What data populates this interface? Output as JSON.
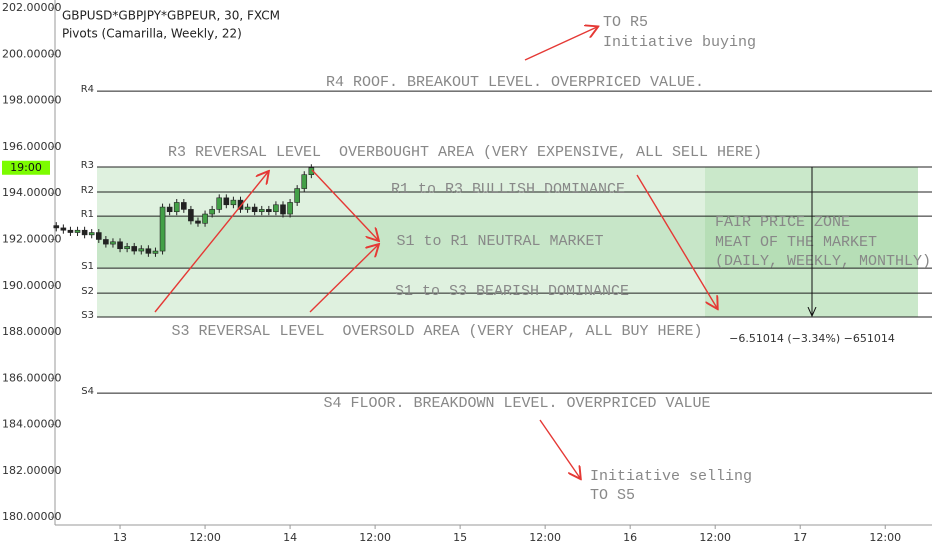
{
  "chart_data": {
    "type": "candlestick",
    "title": "GBPUSD*GBPJPY*GBPEUR, 30, FXCM",
    "subtitle": "Pivots (Camarilla, Weekly, 22)",
    "ylim": [
      179.66,
      202.35
    ],
    "yticks": [
      {
        "value": 180,
        "label": "180.00000"
      },
      {
        "value": 182,
        "label": "182.00000"
      },
      {
        "value": 184,
        "label": "184.00000"
      },
      {
        "value": 186,
        "label": "186.00000"
      },
      {
        "value": 188,
        "label": "188.00000"
      },
      {
        "value": 190,
        "label": "190.00000"
      },
      {
        "value": 192,
        "label": "192.00000"
      },
      {
        "value": 194,
        "label": "194.00000"
      },
      {
        "value": 196,
        "label": "196.00000"
      },
      {
        "value": 198,
        "label": "198.00000"
      },
      {
        "value": 200,
        "label": "200.00000"
      },
      {
        "value": 202,
        "label": "202.00000"
      }
    ],
    "xlim": [
      -9.18,
      114.6
    ],
    "xticks": [
      {
        "value": 0,
        "label": "13"
      },
      {
        "value": 12,
        "label": "12:00"
      },
      {
        "value": 24,
        "label": "14"
      },
      {
        "value": 36,
        "label": "12:00"
      },
      {
        "value": 48,
        "label": "15"
      },
      {
        "value": 60,
        "label": "12:00"
      },
      {
        "value": 72,
        "label": "16"
      },
      {
        "value": 84,
        "label": "12:00"
      },
      {
        "value": 96,
        "label": "17"
      },
      {
        "value": 108,
        "label": "12:00"
      }
    ],
    "up_color": "#43a047",
    "down_color": "#222222",
    "x": [
      -9,
      -8,
      -7,
      -6,
      -5,
      -4,
      -3,
      -2,
      -1,
      0,
      1,
      2,
      3,
      4,
      5,
      6,
      7,
      8,
      9,
      10,
      11,
      12,
      13,
      14,
      15,
      16,
      17,
      18,
      19,
      20,
      21,
      22,
      23,
      24,
      25,
      26,
      27
    ],
    "open": [
      192.6,
      192.5,
      192.4,
      192.3,
      192.4,
      192.2,
      192.3,
      192.0,
      191.8,
      191.9,
      191.6,
      191.7,
      191.5,
      191.6,
      191.4,
      191.5,
      193.4,
      193.2,
      193.6,
      193.3,
      192.8,
      192.7,
      193.1,
      193.3,
      193.8,
      193.5,
      193.7,
      193.3,
      193.4,
      193.2,
      193.3,
      193.2,
      193.5,
      193.1,
      193.6,
      194.2,
      194.8
    ],
    "high": [
      192.75,
      192.65,
      192.55,
      192.55,
      192.55,
      192.45,
      192.45,
      192.15,
      192.05,
      192.05,
      191.85,
      191.85,
      191.75,
      191.75,
      191.65,
      193.55,
      193.55,
      193.75,
      193.75,
      193.45,
      192.95,
      193.25,
      193.45,
      193.95,
      193.95,
      193.85,
      193.85,
      193.55,
      193.55,
      193.45,
      193.45,
      193.65,
      193.65,
      193.75,
      194.35,
      194.95,
      195.25
    ],
    "low": [
      192.35,
      192.25,
      192.15,
      192.15,
      192.05,
      192.05,
      191.85,
      191.65,
      191.65,
      191.45,
      191.45,
      191.35,
      191.35,
      191.25,
      191.25,
      191.35,
      193.05,
      193.05,
      193.15,
      192.65,
      192.55,
      192.55,
      192.95,
      193.15,
      193.35,
      193.35,
      193.15,
      193.15,
      193.05,
      193.05,
      193.05,
      193.05,
      192.95,
      192.95,
      193.45,
      194.05,
      194.65
    ],
    "close": [
      192.5,
      192.4,
      192.3,
      192.4,
      192.2,
      192.3,
      192.0,
      191.8,
      191.9,
      191.6,
      191.7,
      191.5,
      191.6,
      191.4,
      191.5,
      193.4,
      193.2,
      193.6,
      193.3,
      192.8,
      192.7,
      193.1,
      193.3,
      193.8,
      193.5,
      193.7,
      193.3,
      193.4,
      193.2,
      193.3,
      193.2,
      193.5,
      193.1,
      193.6,
      194.2,
      194.8,
      195.1
    ],
    "pivots": [
      {
        "name": "R4",
        "value": 198.41
      },
      {
        "name": "R3",
        "value": 195.13
      },
      {
        "name": "R2",
        "value": 194.05
      },
      {
        "name": "R1",
        "value": 193.01
      },
      {
        "name": "S1",
        "value": 190.76
      },
      {
        "name": "S2",
        "value": 189.68
      },
      {
        "name": "S3",
        "value": 188.65
      },
      {
        "name": "S4",
        "value": 185.36
      }
    ],
    "time_label": "19:00",
    "measurement": "−6.51014 (−3.34%) −651014",
    "annotations": [
      "TO R5",
      "Initiative buying",
      "R4 ROOF. BREAKOUT LEVEL. OVERPRICED VALUE.",
      "R3 REVERSAL LEVEL  OVERBOUGHT AREA (VERY EXPENSIVE, ALL SELL HERE)",
      "R1 to R3 BULLISH DOMINANCE",
      "S1 to R1 NEUTRAL MARKET",
      "S1 to S3 BEARISH DOMINANCE",
      "S3 REVERSAL LEVEL  OVERSOLD AREA (VERY CHEAP, ALL BUY HERE)",
      "S4 FLOOR. BREAKDOWN LEVEL. OVERPRICED VALUE",
      "Initiative selling",
      "TO S5",
      "FAIR PRICE ZONE",
      "MEAT OF THE MARKET",
      "(DAILY, WEEKLY, MONTHLY)"
    ]
  }
}
